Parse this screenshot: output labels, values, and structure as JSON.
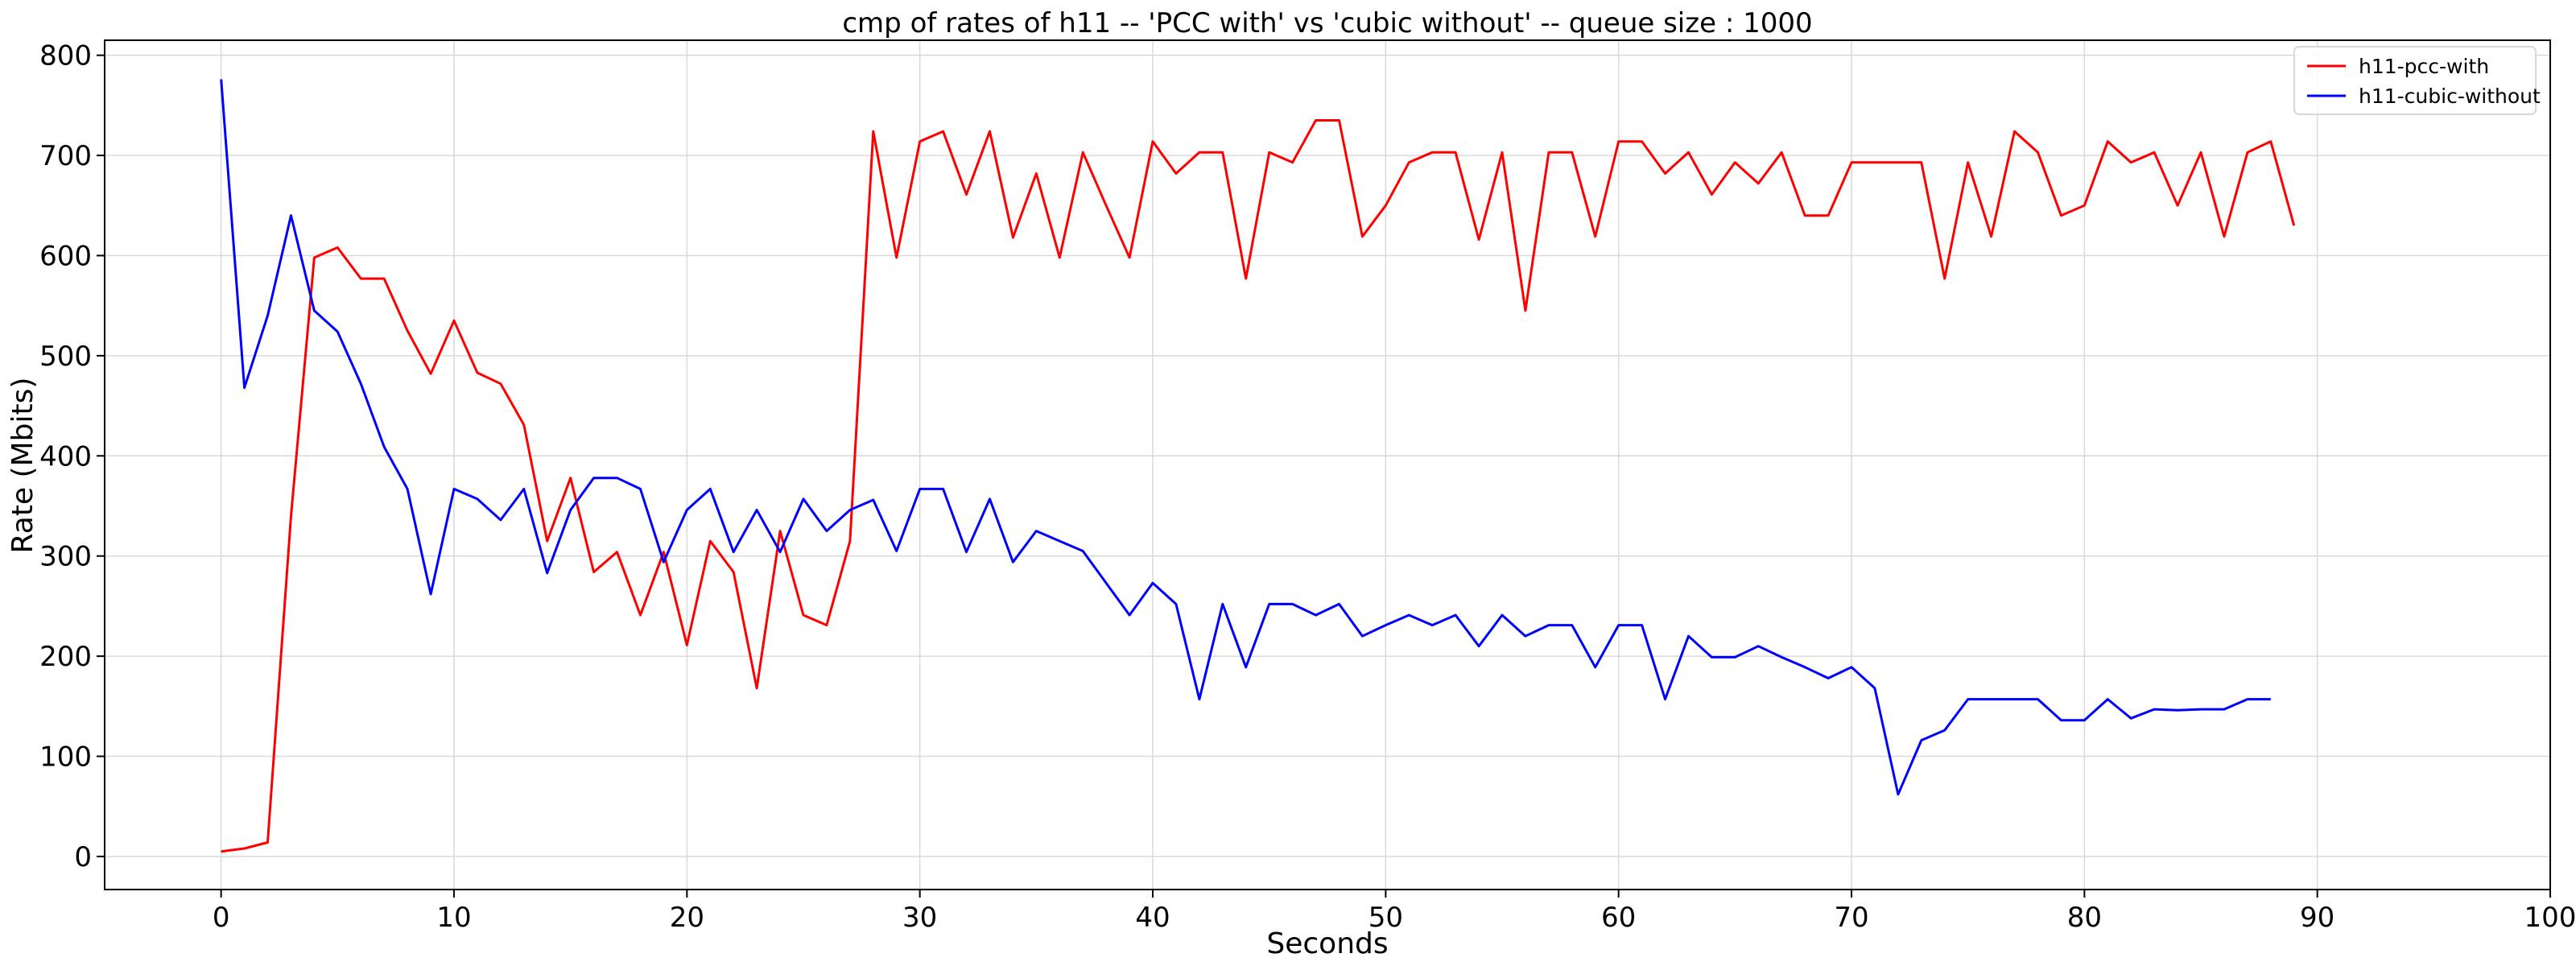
{
  "chart_data": {
    "type": "line",
    "title": "cmp of rates of h11 -- 'PCC with' vs 'cubic without' -- queue size : 1000",
    "xlabel": "Seconds",
    "ylabel": "Rate (Mbits)",
    "xlim": [
      -5,
      100
    ],
    "ylim": [
      -33,
      815
    ],
    "xticks": [
      0,
      10,
      20,
      30,
      40,
      50,
      60,
      70,
      80,
      90,
      100
    ],
    "yticks": [
      0,
      100,
      200,
      300,
      400,
      500,
      600,
      700,
      800
    ],
    "grid": true,
    "legend_position": "top-right",
    "series": [
      {
        "name": "h11-pcc-with",
        "color": "#ff0000",
        "x": [
          0,
          1,
          2,
          3,
          4,
          5,
          6,
          7,
          8,
          9,
          10,
          11,
          12,
          13,
          14,
          15,
          16,
          17,
          18,
          19,
          20,
          21,
          22,
          23,
          24,
          25,
          26,
          27,
          28,
          29,
          30,
          31,
          32,
          33,
          34,
          35,
          36,
          37,
          38,
          39,
          40,
          41,
          42,
          43,
          44,
          45,
          46,
          47,
          48,
          49,
          50,
          51,
          52,
          53,
          54,
          55,
          56,
          57,
          58,
          59,
          60,
          61,
          62,
          63,
          64,
          65,
          66,
          67,
          68,
          69,
          70,
          71,
          72,
          73,
          74,
          75,
          76,
          77,
          78,
          79,
          80,
          81,
          82,
          83,
          84,
          85,
          86,
          87,
          88,
          89
        ],
        "values": [
          5,
          8,
          14,
          340,
          598,
          608,
          577,
          577,
          525,
          482,
          535,
          483,
          472,
          431,
          315,
          378,
          284,
          304,
          241,
          304,
          211,
          315,
          284,
          168,
          325,
          241,
          231,
          315,
          724,
          598,
          714,
          724,
          661,
          724,
          618,
          682,
          598,
          703,
          650,
          598,
          714,
          682,
          703,
          703,
          577,
          703,
          693,
          735,
          735,
          619,
          650,
          693,
          703,
          703,
          616,
          703,
          545,
          703,
          703,
          619,
          714,
          714,
          682,
          703,
          661,
          693,
          672,
          703,
          640,
          640,
          693,
          693,
          693,
          693,
          577,
          693,
          619,
          724,
          703,
          640,
          650,
          714,
          693,
          703,
          650,
          703,
          619,
          703,
          714,
          630
        ]
      },
      {
        "name": "h11-cubic-without",
        "color": "#0000ff",
        "x": [
          0,
          1,
          2,
          3,
          4,
          5,
          6,
          7,
          8,
          9,
          10,
          11,
          12,
          13,
          14,
          15,
          16,
          17,
          18,
          19,
          20,
          21,
          22,
          23,
          24,
          25,
          26,
          27,
          28,
          29,
          30,
          31,
          32,
          33,
          34,
          35,
          36,
          37,
          38,
          39,
          40,
          41,
          42,
          43,
          44,
          45,
          46,
          47,
          48,
          49,
          50,
          51,
          52,
          53,
          54,
          55,
          56,
          57,
          58,
          59,
          60,
          61,
          62,
          63,
          64,
          65,
          66,
          67,
          68,
          69,
          70,
          71,
          72,
          73,
          74,
          75,
          76,
          77,
          78,
          79,
          80,
          81,
          82,
          83,
          84,
          85,
          86,
          87,
          88
        ],
        "values": [
          776,
          468,
          540,
          640,
          545,
          524,
          472,
          409,
          367,
          262,
          367,
          357,
          336,
          367,
          283,
          346,
          378,
          378,
          367,
          294,
          346,
          367,
          304,
          346,
          304,
          357,
          325,
          346,
          356,
          305,
          367,
          367,
          304,
          357,
          294,
          325,
          315,
          305,
          273,
          241,
          273,
          252,
          157,
          252,
          189,
          252,
          252,
          241,
          252,
          220,
          231,
          241,
          231,
          241,
          210,
          241,
          220,
          231,
          231,
          189,
          231,
          231,
          157,
          220,
          199,
          199,
          210,
          199,
          189,
          178,
          189,
          168,
          62,
          116,
          126,
          157,
          157,
          157,
          157,
          136,
          136,
          157,
          138,
          147,
          146,
          147,
          147,
          157,
          157
        ]
      }
    ]
  }
}
